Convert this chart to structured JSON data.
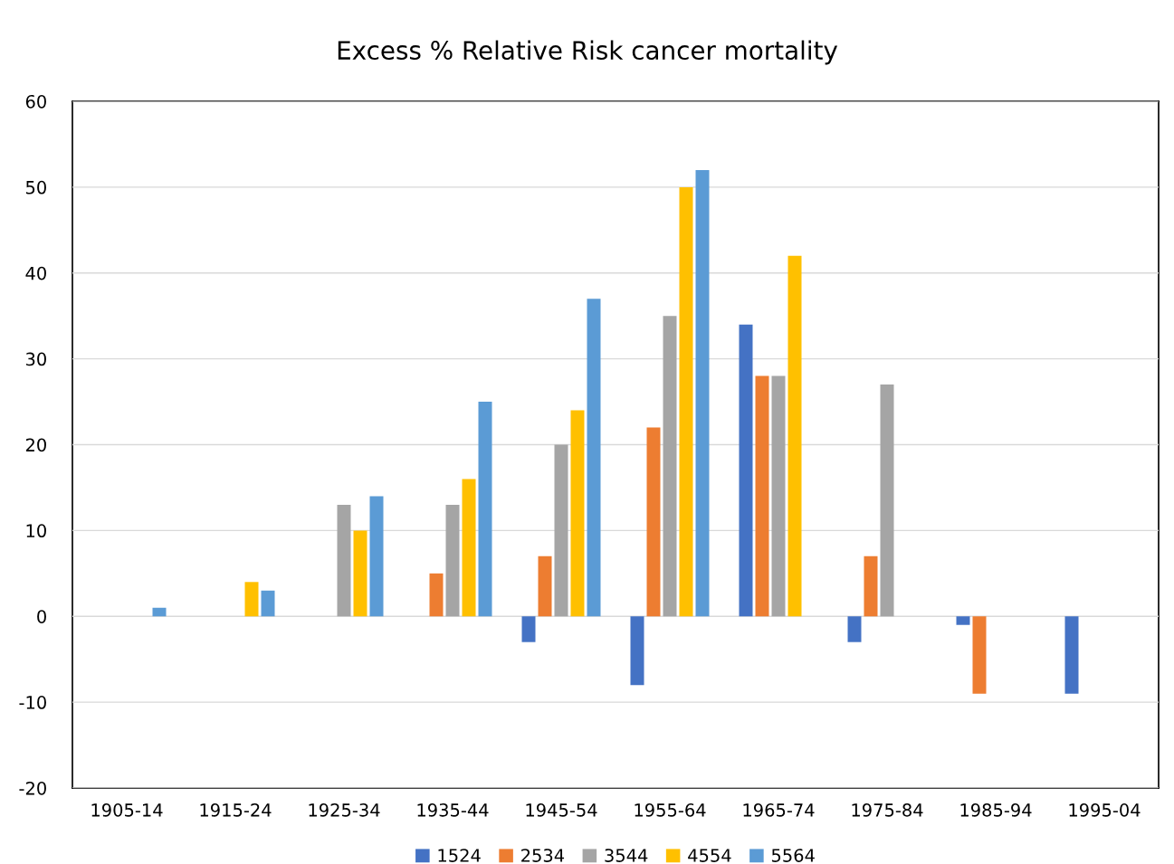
{
  "chart_data": {
    "type": "bar",
    "title": "Excess % Relative Risk cancer mortality",
    "categories": [
      "1905-14",
      "1915-24",
      "1925-34",
      "1935-44",
      "1945-54",
      "1955-64",
      "1965-74",
      "1975-84",
      "1985-94",
      "1995-04"
    ],
    "series": [
      {
        "name": "1524",
        "color": "#4472c4",
        "values": [
          null,
          null,
          null,
          null,
          -3,
          -8,
          34,
          -3,
          -1,
          -9
        ]
      },
      {
        "name": "2534",
        "color": "#ed7d31",
        "values": [
          null,
          null,
          null,
          5,
          7,
          22,
          28,
          7,
          -9,
          null
        ]
      },
      {
        "name": "3544",
        "color": "#a5a5a5",
        "values": [
          null,
          null,
          13,
          13,
          20,
          35,
          28,
          27,
          null,
          null
        ]
      },
      {
        "name": "4554",
        "color": "#ffc000",
        "values": [
          null,
          4,
          10,
          16,
          24,
          50,
          42,
          null,
          null,
          null
        ]
      },
      {
        "name": "5564",
        "color": "#5b9bd5",
        "values": [
          1,
          3,
          14,
          25,
          37,
          52,
          null,
          null,
          null,
          null
        ]
      }
    ],
    "ylim": [
      -20,
      60
    ],
    "yticks": [
      -20,
      -10,
      0,
      10,
      20,
      30,
      40,
      50,
      60
    ],
    "grid": "y",
    "legend": "bottom"
  }
}
